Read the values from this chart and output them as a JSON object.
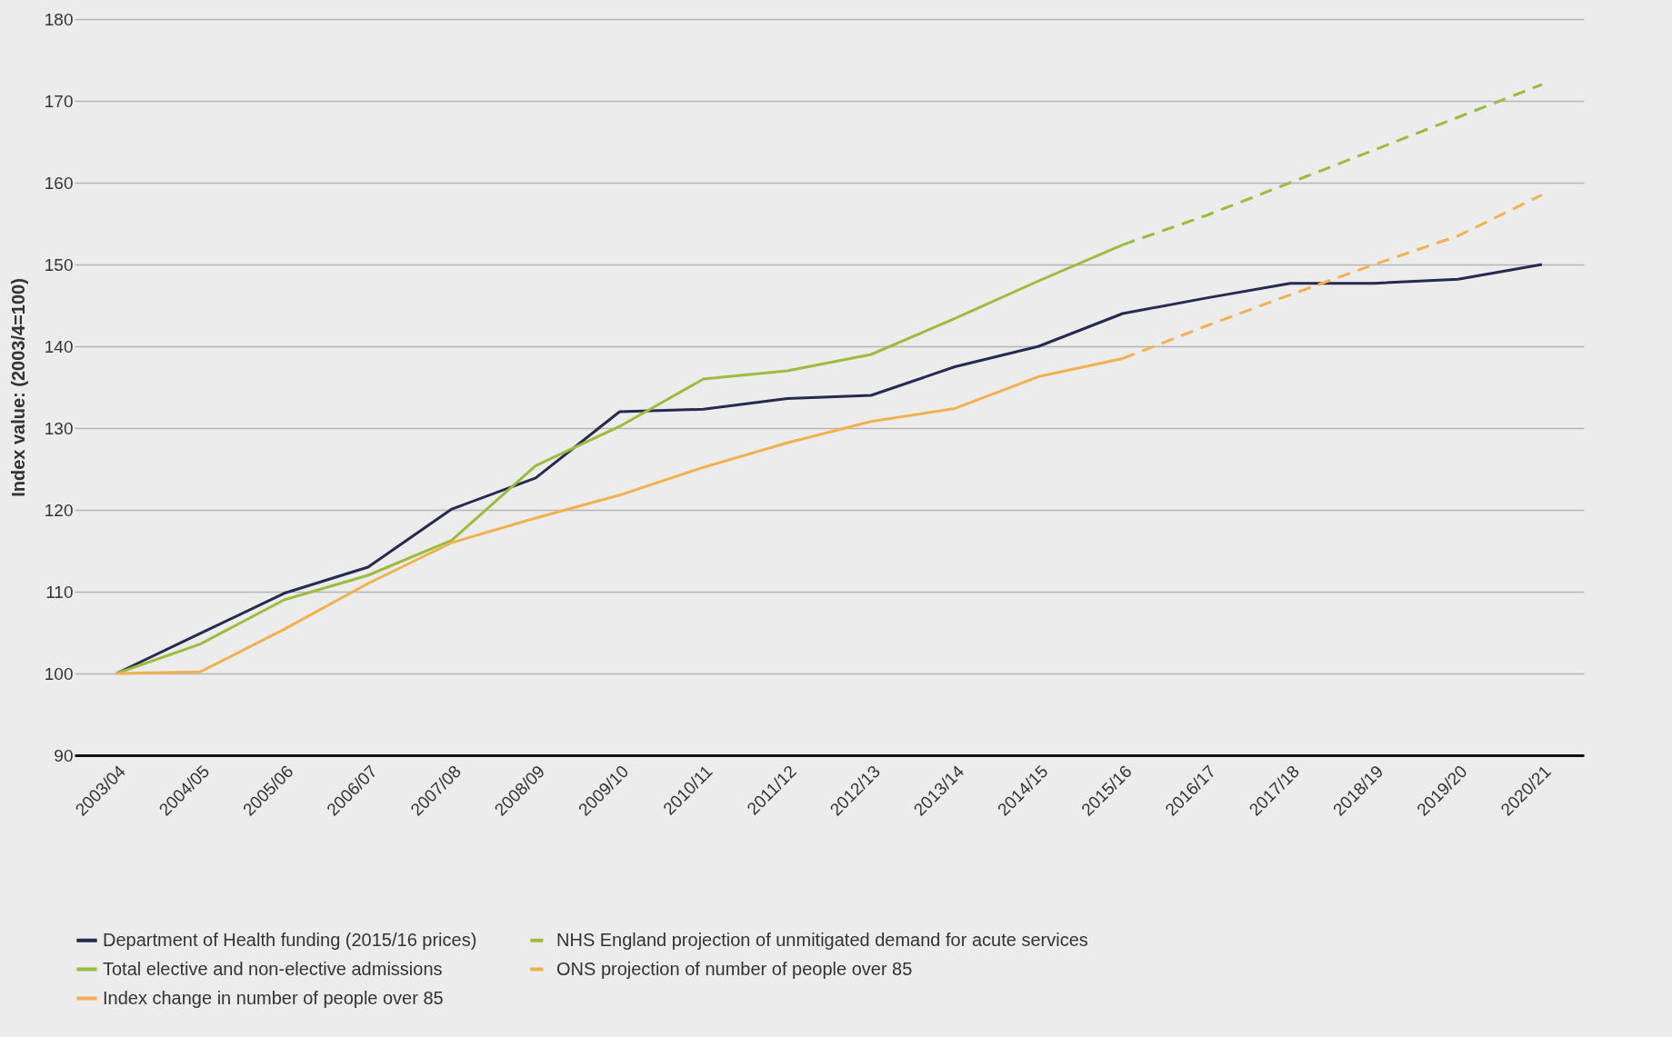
{
  "chart_data": {
    "type": "line",
    "ylabel": "Index value: (2003/4=100)",
    "categories": [
      "2003/04",
      "2004/05",
      "2005/06",
      "2006/07",
      "2007/08",
      "2008/09",
      "2009/10",
      "2010/11",
      "2011/12",
      "2012/13",
      "2013/14",
      "2014/15",
      "2015/16",
      "2016/17",
      "2017/18",
      "2018/19",
      "2019/20",
      "2020/21"
    ],
    "series": [
      {
        "name": "Department of Health funding (2015/16 prices)",
        "color": "#272a4f",
        "line_style": "solid",
        "values": [
          100,
          104.9,
          109.8,
          113,
          120.1,
          123.9,
          132,
          132.3,
          133.6,
          134,
          137.5,
          140,
          144,
          145.9,
          147.7,
          147.7,
          148.2,
          150
        ]
      },
      {
        "name": "Total elective and non-elective admissions",
        "color": "#9dbb3e",
        "line_style": "solid",
        "values": [
          100,
          103.6,
          109,
          112,
          116.3,
          125.4,
          130.2,
          136,
          137,
          139,
          143.4,
          148,
          152.4,
          null,
          null,
          null,
          null,
          null
        ]
      },
      {
        "name": "Index change in number of people over 85",
        "color": "#f2b14f",
        "line_style": "solid",
        "values": [
          100,
          100.2,
          105.4,
          111,
          116,
          119,
          121.8,
          125.2,
          128.2,
          130.8,
          132.4,
          136.3,
          138.5,
          null,
          null,
          null,
          null,
          null
        ]
      },
      {
        "name": "NHS England projection of unmitigated demand for acute services",
        "color": "#9dbb3e",
        "line_style": "dashed",
        "values": [
          null,
          null,
          null,
          null,
          null,
          null,
          null,
          null,
          null,
          null,
          null,
          null,
          152.4,
          156,
          160,
          164,
          168,
          172
        ]
      },
      {
        "name": "ONS projection of number of people over 85",
        "color": "#f2b14f",
        "line_style": "dashed",
        "values": [
          null,
          null,
          null,
          null,
          null,
          null,
          null,
          null,
          null,
          null,
          null,
          null,
          138.5,
          142.5,
          146.3,
          150,
          153.5,
          158.5
        ]
      }
    ],
    "ylim": [
      90,
      180
    ],
    "yticks": [
      90,
      100,
      110,
      120,
      130,
      140,
      150,
      160,
      170,
      180
    ],
    "grid": "y",
    "legend": "bottom",
    "marker": "none"
  }
}
